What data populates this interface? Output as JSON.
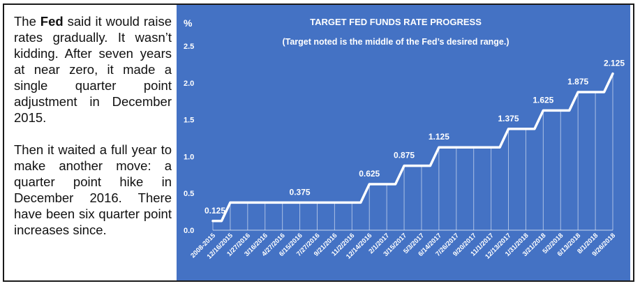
{
  "narrative": {
    "p1_pre": "The ",
    "p1_bold": "Fed",
    "p1_post": " said it would raise rates gradually. It wasn’t kidding. After seven years at near zero, it made a single quarter point adjustment in December 2015.",
    "p2": "Then it waited a full year to make another move: a quarter point hike in December 2016. There have been six quarter point increases since."
  },
  "chart_data": {
    "type": "line",
    "title": "TARGET FED FUNDS RATE PROGRESS",
    "subtitle": "(Target noted is the middle of the Fed’s desired range.)",
    "ylabel": "%",
    "ylim": [
      0,
      2.5
    ],
    "yticks": [
      "0.0",
      "0.5",
      "1.0",
      "1.5",
      "2.0",
      "2.5"
    ],
    "grid": "vertical drop lines",
    "step": true,
    "categories": [
      "2008-2015",
      "12/16/2015",
      "1/27/2016",
      "3/16/2016",
      "4/27/2016",
      "6/15/2016",
      "7/27/2016",
      "9/21/2016",
      "11/2/2016",
      "12/14/2016",
      "2/1/2017",
      "3/15/2017",
      "5/3/2017",
      "6/14/2017",
      "7/26/2017",
      "9/20/2017",
      "11/1/2017",
      "12/13/2017",
      "1/31/2018",
      "3/21/2018",
      "5/2/2018",
      "6/13/2018",
      "8/1/2018",
      "9/26/2018"
    ],
    "values": [
      0.125,
      0.375,
      0.375,
      0.375,
      0.375,
      0.375,
      0.375,
      0.375,
      0.375,
      0.625,
      0.625,
      0.875,
      0.875,
      1.125,
      1.125,
      1.125,
      1.125,
      1.375,
      1.375,
      1.625,
      1.625,
      1.875,
      1.875,
      2.125
    ],
    "data_labels": [
      {
        "index": 0,
        "text": "0.125"
      },
      {
        "index": 5,
        "text": "0.375"
      },
      {
        "index": 9,
        "text": "0.625"
      },
      {
        "index": 11,
        "text": "0.875"
      },
      {
        "index": 13,
        "text": "1.125"
      },
      {
        "index": 17,
        "text": "1.375"
      },
      {
        "index": 19,
        "text": "1.625"
      },
      {
        "index": 21,
        "text": "1.875"
      },
      {
        "index": 23,
        "text": "2.125"
      }
    ],
    "colors": {
      "background": "#4472c4",
      "line": "#ffffff",
      "text": "#ffffff"
    }
  }
}
